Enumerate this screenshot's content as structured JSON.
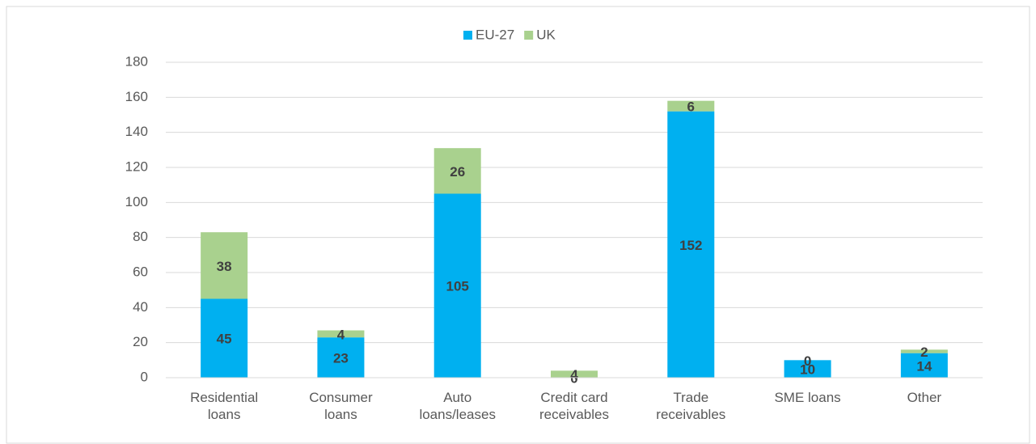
{
  "chart_data": {
    "type": "stacked_bar",
    "categories": [
      "Residential\nloans",
      "Consumer\nloans",
      "Auto\nloans/leases",
      "Credit card\nreceivables",
      "Trade\nreceivables",
      "SME loans",
      "Other"
    ],
    "series": [
      {
        "name": "EU-27",
        "color": "#00b0f0",
        "values": [
          45,
          23,
          105,
          0,
          152,
          10,
          14
        ]
      },
      {
        "name": "UK",
        "color": "#a9d18e",
        "values": [
          38,
          4,
          26,
          4,
          6,
          0,
          2
        ]
      }
    ],
    "ylim": [
      0,
      180
    ],
    "yticks": [
      0,
      20,
      40,
      60,
      80,
      100,
      120,
      140,
      160,
      180
    ],
    "grid": true,
    "legend": "top"
  }
}
